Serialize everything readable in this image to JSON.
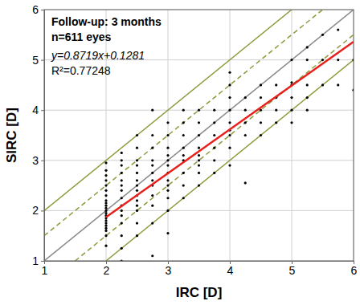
{
  "chart_data": {
    "type": "scatter",
    "x_label": "IRC [D]",
    "y_label": "SIRC [D]",
    "annotations": [
      "Follow-up: 3 months",
      "n=611 eyes",
      "y=0.8719x+0.1281",
      "R²=0.77248"
    ],
    "xlim": [
      1,
      6
    ],
    "ylim": [
      1,
      6
    ],
    "xticks": [
      1,
      2,
      3,
      4,
      5,
      6
    ],
    "yticks": [
      1,
      2,
      3,
      4,
      5,
      6
    ],
    "grid": true,
    "series": [
      {
        "type": "line",
        "color": "#8c9a3c",
        "line_style": "solid",
        "x": [
          1,
          5
        ],
        "values": [
          2,
          6
        ]
      },
      {
        "type": "line",
        "color": "#8c9a3c",
        "line_style": "solid",
        "x": [
          2,
          6
        ],
        "values": [
          1,
          5
        ]
      },
      {
        "type": "line",
        "color": "#8c9a3c",
        "line_style": "dashed",
        "x": [
          1,
          5.5
        ],
        "values": [
          1.5,
          6
        ]
      },
      {
        "type": "line",
        "color": "#8c9a3c",
        "line_style": "dashed",
        "x": [
          1.5,
          6
        ],
        "values": [
          1,
          5.5
        ]
      },
      {
        "type": "line",
        "color": "#8a8a8a",
        "line_style": "solid",
        "x": [
          1,
          6
        ],
        "values": [
          1,
          6
        ]
      },
      {
        "type": "scatter",
        "color": "#000000",
        "marker": "circle",
        "x": [
          2,
          2,
          2,
          2,
          2,
          2,
          2,
          2,
          2,
          2,
          2,
          2,
          2,
          2,
          2,
          2,
          2,
          2,
          2,
          2,
          2,
          2,
          2.25,
          2.25,
          2.25,
          2.25,
          2.25,
          2.25,
          2.25,
          2.25,
          2.25,
          2.25,
          2.25,
          2.25,
          2.25,
          2.25,
          2.25,
          2.5,
          2.5,
          2.5,
          2.5,
          2.5,
          2.5,
          2.5,
          2.5,
          2.5,
          2.5,
          2.5,
          2.5,
          2.5,
          2.5,
          2.75,
          2.75,
          2.75,
          2.75,
          2.75,
          2.75,
          2.75,
          2.75,
          2.75,
          2.75,
          2.75,
          2.75,
          3,
          3,
          3,
          3,
          3,
          3,
          3,
          3,
          3,
          3,
          3,
          3,
          3,
          3.25,
          3.25,
          3.25,
          3.25,
          3.25,
          3.25,
          3.25,
          3.25,
          3.25,
          3.5,
          3.5,
          3.5,
          3.5,
          3.5,
          3.5,
          3.5,
          3.5,
          3.5,
          3.75,
          3.75,
          3.75,
          3.75,
          3.75,
          3.75,
          4,
          4,
          4,
          4,
          4,
          4,
          4,
          4,
          4,
          4.25,
          4.25,
          4.25,
          4.25,
          4.25,
          4.5,
          4.5,
          4.5,
          4.5,
          4.5,
          4.75,
          4.75,
          4.75,
          4.75,
          5,
          5,
          5,
          5,
          5,
          5,
          5.25,
          5.25,
          5.25,
          5.25,
          5.25,
          5.5,
          5.5,
          5.5,
          5.75,
          5.75,
          5.75,
          6,
          6
        ],
        "values": [
          1.3,
          1.5,
          1.6,
          1.65,
          1.7,
          1.75,
          1.8,
          1.85,
          1.9,
          1.95,
          2.0,
          2.05,
          2.1,
          2.15,
          2.2,
          2.3,
          2.4,
          2.5,
          2.6,
          2.7,
          2.8,
          2.95,
          1.0,
          1.25,
          1.5,
          1.75,
          1.9,
          2.0,
          2.1,
          2.25,
          2.4,
          2.5,
          2.6,
          2.75,
          2.9,
          3.0,
          3.15,
          1.5,
          1.75,
          2.0,
          2.1,
          2.2,
          2.3,
          2.4,
          2.5,
          2.6,
          2.75,
          2.9,
          3.0,
          3.25,
          3.5,
          1.1,
          1.75,
          2.1,
          2.3,
          2.5,
          2.6,
          2.75,
          2.9,
          3.0,
          3.25,
          3.5,
          4.0,
          1.55,
          2.0,
          2.25,
          2.4,
          2.5,
          2.6,
          2.75,
          2.9,
          3.0,
          3.1,
          3.25,
          3.5,
          3.75,
          2.25,
          2.5,
          2.75,
          3.0,
          3.1,
          3.25,
          3.5,
          3.75,
          4.0,
          2.5,
          2.75,
          2.9,
          3.0,
          3.1,
          3.25,
          3.5,
          3.75,
          4.0,
          2.75,
          3.0,
          3.25,
          3.5,
          3.75,
          4.0,
          2.9,
          3.25,
          3.5,
          3.6,
          3.75,
          4.0,
          4.25,
          4.5,
          4.75,
          2.55,
          3.5,
          3.75,
          4.0,
          4.25,
          3.5,
          3.75,
          4.0,
          4.25,
          4.5,
          3.75,
          4.0,
          4.25,
          4.5,
          3.75,
          4.0,
          4.25,
          4.5,
          4.55,
          5.0,
          4.0,
          4.25,
          4.5,
          5.0,
          5.25,
          4.5,
          5.0,
          5.5,
          4.5,
          5.0,
          5.6,
          4.4,
          5.0
        ]
      },
      {
        "type": "line",
        "color": "#e8201c",
        "line_style": "solid",
        "x": [
          2,
          6
        ],
        "values": [
          1.872,
          5.36
        ]
      }
    ]
  }
}
